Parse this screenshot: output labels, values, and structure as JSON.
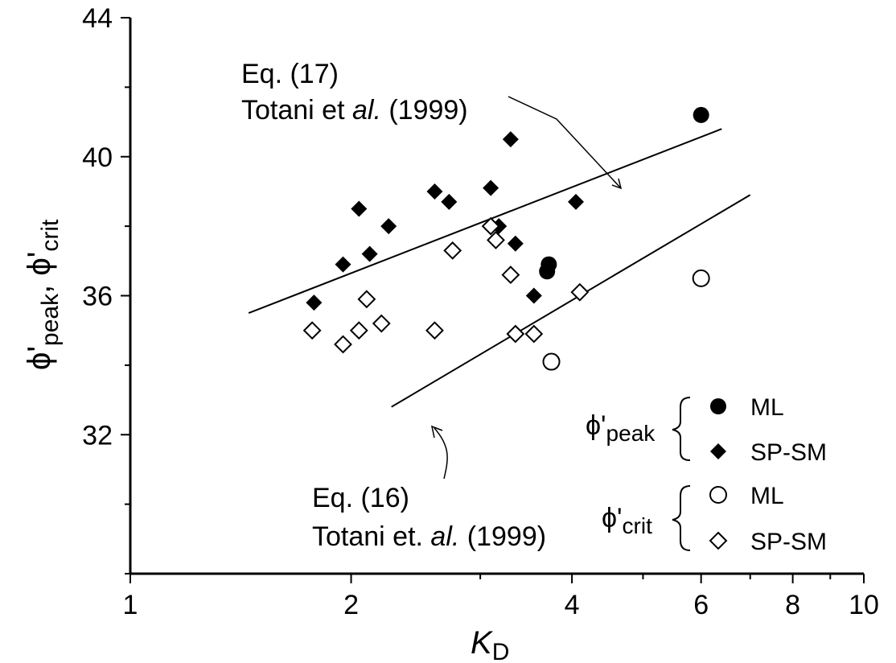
{
  "chart_data": {
    "type": "scatter",
    "x_scale": "log",
    "xlim": [
      1,
      10
    ],
    "ylim": [
      28,
      44
    ],
    "grid": false,
    "xlabel": {
      "main": "K",
      "sub": "D"
    },
    "ylabel": {
      "p1": "ϕ'",
      "s1": "peak",
      "sep": ", ϕ'",
      "s2": "crit"
    },
    "x_ticks": [
      1,
      2,
      4,
      6,
      8,
      10
    ],
    "y_ticks": [
      32,
      36,
      40,
      44
    ],
    "series": [
      {
        "name": "ML",
        "group": "peak",
        "marker": "filled-circle",
        "x": [
          3.7,
          3.72,
          6.0
        ],
        "y": [
          36.7,
          36.9,
          41.2
        ]
      },
      {
        "name": "SP-SM",
        "group": "peak",
        "marker": "filled-diamond",
        "x": [
          1.78,
          1.95,
          2.05,
          2.12,
          2.25,
          2.6,
          2.72,
          3.1,
          3.18,
          3.3,
          3.35,
          3.55,
          4.05
        ],
        "y": [
          35.8,
          36.9,
          38.5,
          37.2,
          38.0,
          39.0,
          38.7,
          39.1,
          38.0,
          40.5,
          37.5,
          36.0,
          38.7
        ]
      },
      {
        "name": "ML",
        "group": "crit",
        "marker": "open-circle",
        "x": [
          3.75,
          6.0
        ],
        "y": [
          34.1,
          36.5
        ]
      },
      {
        "name": "SP-SM",
        "group": "crit",
        "marker": "open-diamond",
        "x": [
          1.77,
          1.95,
          2.05,
          2.1,
          2.2,
          2.6,
          2.75,
          3.1,
          3.15,
          3.3,
          3.35,
          3.55,
          4.1
        ],
        "y": [
          35.0,
          34.6,
          35.0,
          35.9,
          35.2,
          35.0,
          37.3,
          38.0,
          37.6,
          36.6,
          34.9,
          34.9,
          36.1
        ]
      }
    ],
    "lines": [
      {
        "name": "Eq. (17)",
        "x": [
          1.45,
          6.4
        ],
        "y": [
          35.5,
          40.8
        ]
      },
      {
        "name": "Eq. (16)",
        "x": [
          2.27,
          7.0
        ],
        "y": [
          32.8,
          38.9
        ]
      }
    ],
    "annotations": {
      "eq17": {
        "line1": "Eq. (17)",
        "line2a": "Totani et ",
        "line2b": "al.",
        "line2c": " (1999)"
      },
      "eq16": {
        "line1": "Eq. (16)",
        "line2a": "Totani et. ",
        "line2b": "al.",
        "line2c": " (1999)"
      }
    },
    "legend": {
      "position": "bottom-right",
      "peak_label": {
        "main": "ϕ'",
        "sub": "peak"
      },
      "crit_label": {
        "main": "ϕ'",
        "sub": "crit"
      },
      "entries": [
        "ML",
        "SP-SM",
        "ML",
        "SP-SM"
      ]
    }
  }
}
